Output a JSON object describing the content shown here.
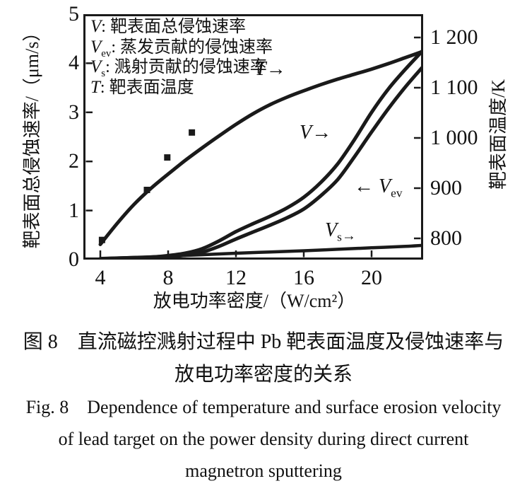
{
  "figure": {
    "legend": [
      {
        "var": "V",
        "sub": "",
        "desc": ": 靶表面总侵蚀速率"
      },
      {
        "var": "V",
        "sub": "ev",
        "desc": ": 蒸发贡献的侵蚀速率"
      },
      {
        "var": "V",
        "sub": "s",
        "desc": ": 溅射贡献的侵蚀速率"
      },
      {
        "var": "T",
        "sub": "",
        "desc": ": 靶表面温度"
      }
    ],
    "curve_labels": {
      "T": {
        "var": "T",
        "arrow": "→"
      },
      "V": {
        "var": "V",
        "arrow": "→"
      },
      "Vev": {
        "arrow": "←",
        "var": "V",
        "sub": "ev"
      },
      "Vs": {
        "var": "V",
        "sub": "s",
        "arrow": "→"
      }
    },
    "axes": {
      "left": {
        "title": "靶表面总侵蚀速率/（μm/s）",
        "ticks": [
          "5",
          "4",
          "3",
          "2",
          "1",
          "0"
        ]
      },
      "right": {
        "title": "靶表面温度/K",
        "ticks": [
          "1 200",
          "1 100",
          "1 000",
          "900",
          "800"
        ]
      },
      "bottom": {
        "title": "放电功率密度/（W/cm²）",
        "ticks": [
          "4",
          "8",
          "12",
          "16",
          "20"
        ]
      }
    },
    "ink_color": "#1a1a1a",
    "background_color": "#ffffff"
  },
  "caption": {
    "zh": [
      "图 8　直流磁控溅射过程中 Pb 靶表面温度及侵蚀速率与",
      "放电功率密度的关系"
    ],
    "en": [
      "Fig. 8 Dependence of temperature and surface erosion velocity",
      "of lead target on the power density during direct current",
      "magnetron sputtering"
    ]
  },
  "chart_data": {
    "type": "line",
    "xlabel": "放电功率密度/（W/cm²）",
    "ylabel_left": "靶表面总侵蚀速率/（μm/s）",
    "ylabel_right": "靶表面温度/K",
    "xlim": [
      3,
      23.1
    ],
    "ylim_left": [
      0,
      5
    ],
    "ylim_right": [
      758,
      1246
    ],
    "x_ticks": [
      4,
      8,
      12,
      16,
      20
    ],
    "y_ticks_left": [
      0,
      1,
      2,
      3,
      4,
      5
    ],
    "y_ticks_right": [
      800,
      900,
      1000,
      1100,
      1200
    ],
    "grid": false,
    "legend_position": "inside top-left",
    "series": [
      {
        "name": "Vs",
        "label": "Vs 溅射贡献的侵蚀速率",
        "axis": "left",
        "unit": "μm/s",
        "points": [
          [
            4,
            0.02
          ],
          [
            6,
            0.045
          ],
          [
            8,
            0.07
          ],
          [
            10,
            0.1
          ],
          [
            12,
            0.13
          ],
          [
            14,
            0.155
          ],
          [
            16,
            0.18
          ],
          [
            18,
            0.21
          ],
          [
            20,
            0.24
          ],
          [
            22,
            0.27
          ],
          [
            23,
            0.29
          ]
        ]
      },
      {
        "name": "Vev",
        "label": "Vev 蒸发贡献的侵蚀速率",
        "axis": "left",
        "unit": "μm/s",
        "points": [
          [
            4,
            0.01
          ],
          [
            5,
            0.02
          ],
          [
            6,
            0.03
          ],
          [
            7,
            0.04
          ],
          [
            8,
            0.06
          ],
          [
            9,
            0.09
          ],
          [
            10,
            0.15
          ],
          [
            11,
            0.27
          ],
          [
            12,
            0.42
          ],
          [
            13,
            0.56
          ],
          [
            14,
            0.7
          ],
          [
            15,
            0.85
          ],
          [
            16,
            1.03
          ],
          [
            17,
            1.3
          ],
          [
            18,
            1.63
          ],
          [
            19,
            2.1
          ],
          [
            20,
            2.6
          ],
          [
            21,
            3.08
          ],
          [
            22,
            3.52
          ],
          [
            23,
            3.92
          ]
        ]
      },
      {
        "name": "V",
        "label": "V 靶表面总侵蚀速率",
        "axis": "left",
        "unit": "μm/s",
        "points": [
          [
            4,
            0.02
          ],
          [
            5,
            0.03
          ],
          [
            6,
            0.04
          ],
          [
            7,
            0.05
          ],
          [
            8,
            0.08
          ],
          [
            9,
            0.13
          ],
          [
            10,
            0.22
          ],
          [
            11,
            0.38
          ],
          [
            12,
            0.57
          ],
          [
            13,
            0.73
          ],
          [
            14,
            0.88
          ],
          [
            15,
            1.05
          ],
          [
            16,
            1.27
          ],
          [
            17,
            1.57
          ],
          [
            18,
            1.95
          ],
          [
            19,
            2.45
          ],
          [
            20,
            3.0
          ],
          [
            21,
            3.48
          ],
          [
            22,
            3.88
          ],
          [
            23,
            4.25
          ]
        ]
      },
      {
        "name": "T",
        "label": "T 靶表面温度",
        "axis": "right",
        "unit": "K",
        "points": [
          [
            4,
            788
          ],
          [
            5,
            830
          ],
          [
            6,
            868
          ],
          [
            7,
            900
          ],
          [
            8,
            928
          ],
          [
            9,
            955
          ],
          [
            10,
            980
          ],
          [
            11,
            1004
          ],
          [
            12,
            1027
          ],
          [
            13,
            1048
          ],
          [
            14,
            1066
          ],
          [
            15,
            1081
          ],
          [
            16,
            1094
          ],
          [
            17,
            1106
          ],
          [
            18,
            1117
          ],
          [
            19,
            1127
          ],
          [
            20,
            1137
          ],
          [
            21,
            1148
          ],
          [
            22,
            1160
          ],
          [
            23,
            1172
          ]
        ]
      }
    ],
    "scatter": {
      "name": "experimental-points",
      "marker": "square",
      "axis": "left",
      "points": [
        [
          4.1,
          0.4
        ],
        [
          6.75,
          1.42
        ],
        [
          7.95,
          2.08
        ],
        [
          9.4,
          2.59
        ]
      ]
    }
  }
}
